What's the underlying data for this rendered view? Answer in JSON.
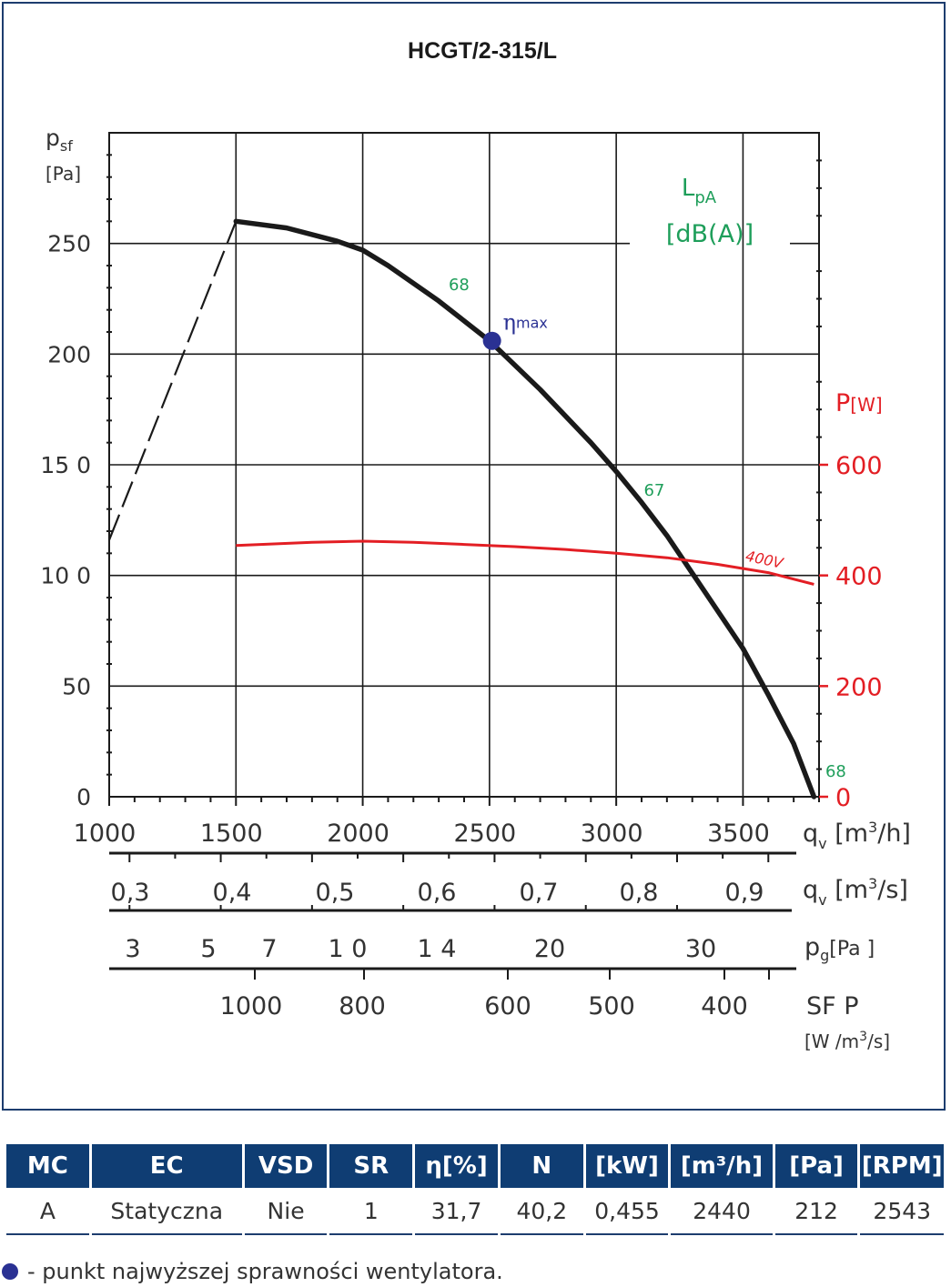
{
  "chart_data": {
    "type": "line",
    "title": "HCGT/2-315/L",
    "y_label": {
      "main": "p",
      "sub": "sf",
      "unit": "[Pa]"
    },
    "x_range": [
      1000,
      3800
    ],
    "y_range": [
      0,
      300
    ],
    "x_ticks": [
      "1000",
      "1500",
      "2000",
      "2500",
      "3000",
      "3500"
    ],
    "x_tick_values": [
      1000,
      1500,
      2000,
      2500,
      3000,
      3500
    ],
    "y_ticks": [
      "0",
      "50",
      "10 0",
      "15 0",
      "200",
      "250"
    ],
    "y_tick_values": [
      0,
      50,
      100,
      150,
      200,
      250
    ],
    "power_axis": {
      "label": "P",
      "unit": "[W]",
      "range": [
        0,
        1200
      ],
      "ticks": [
        "0",
        "200",
        "400",
        "600"
      ],
      "tick_values": [
        0,
        200,
        400,
        600
      ],
      "color": "#e31e24"
    },
    "lpa_label": {
      "main": "L",
      "sub": "pA",
      "unit": "[dB(A)]",
      "color": "#1e9e5a"
    },
    "pressure_curve": {
      "x": [
        1500,
        1700,
        1900,
        2000,
        2100,
        2300,
        2500,
        2700,
        2900,
        3000,
        3100,
        3200,
        3300,
        3400,
        3500,
        3600,
        3700,
        3780
      ],
      "y": [
        260,
        257,
        251,
        247,
        240,
        224,
        206,
        184,
        160,
        147,
        133,
        118,
        101,
        84,
        67,
        46,
        24,
        0
      ]
    },
    "unstable_curve": {
      "x": [
        1000,
        1500
      ],
      "y": [
        116,
        260
      ]
    },
    "power_curve": {
      "name": "400V",
      "x": [
        1500,
        1800,
        2000,
        2200,
        2400,
        2600,
        2800,
        3000,
        3200,
        3400,
        3600,
        3780
      ],
      "y": [
        454,
        460,
        462,
        460,
        456,
        452,
        447,
        440,
        432,
        420,
        405,
        384
      ]
    },
    "eta_max": {
      "label": "η",
      "sub": "max",
      "x": 2510,
      "y": 206,
      "color": "#2a3193"
    },
    "noise_labels": [
      {
        "text": "68",
        "x": 2380,
        "y": 229
      },
      {
        "text": "67",
        "x": 3150,
        "y": 136
      },
      {
        "text": "68",
        "x": 3780,
        "y": 9
      }
    ],
    "grid": true
  },
  "secondary_axes": {
    "qv_h": {
      "label": "q",
      "sub": "v",
      "unit_pre": "[m",
      "sup": "3",
      "unit_post": "/h]"
    },
    "qv_s": {
      "label": "q",
      "sub": "v",
      "unit_pre": "[m",
      "sup": "3",
      "unit_post": "/s]",
      "ticks": [
        "0,3",
        "0,4",
        "0,5",
        "0,6",
        "0,7",
        "0,8",
        "0,9"
      ],
      "tick_values": [
        0.3,
        0.4,
        0.5,
        0.6,
        0.7,
        0.8,
        0.9
      ]
    },
    "pg": {
      "label": "p",
      "sub": "g",
      "unit": "[Pa ]",
      "ticks": [
        "3",
        "5",
        "7",
        "1 0",
        "1 4",
        "20",
        "30"
      ],
      "tick_values": [
        3,
        5,
        7,
        10,
        14,
        20,
        30
      ]
    },
    "sfp": {
      "label": "SF P",
      "unit_pre": "[W /m",
      "sup": "3",
      "unit_post": "/s]",
      "ticks": [
        "1000",
        "800",
        "600",
        "500",
        "400"
      ],
      "tick_values": [
        1000,
        800,
        600,
        500,
        400
      ]
    }
  },
  "table": {
    "headers": [
      "MC",
      "EC",
      "VSD",
      "SR",
      "η[%]",
      "N",
      "[kW]",
      "[m³/h]",
      "[Pa]",
      "[RPM]"
    ],
    "row": [
      "A",
      "Statyczna",
      "Nie",
      "1",
      "31,7",
      "40,2",
      "0,455",
      "2440",
      "212",
      "2543"
    ]
  },
  "footnote": "- punkt najwyższej sprawności wentylatora.",
  "colors": {
    "frame": "#1d3d6e",
    "header_bg": "#0f3d73",
    "curve": "#1a1a1a",
    "power": "#e31e24",
    "noise": "#1e9e5a",
    "eta": "#2a3193"
  }
}
